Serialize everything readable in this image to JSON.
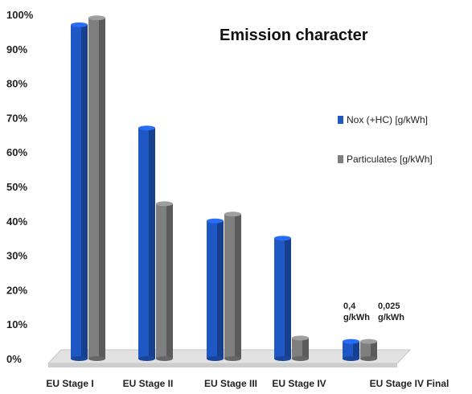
{
  "chart_data": {
    "type": "bar",
    "title": "Emission character",
    "categories": [
      "EU Stage I",
      "EU Stage II",
      "EU Stage III",
      "EU Stage IV",
      "EU Stage IV  Final"
    ],
    "series": [
      {
        "name": "Nox (+HC) [g/kWh]",
        "color": "#1f57c4",
        "values": [
          97,
          67,
          40,
          35,
          5
        ]
      },
      {
        "name": "Particulates [g/kWh]",
        "color": "#7f7f7f",
        "values": [
          99,
          45,
          42,
          6,
          5
        ]
      }
    ],
    "y_ticks": [
      "0%",
      "10%",
      "20%",
      "30%",
      "40%",
      "50%",
      "60%",
      "70%",
      "80%",
      "90%",
      "100%"
    ],
    "ylim": [
      0,
      100
    ],
    "legend_position": "right",
    "grid": false,
    "annotations": [
      {
        "category": "EU Stage IV  Final",
        "series": "Nox (+HC) [g/kWh]",
        "lines": [
          "0,4",
          "g/kWh"
        ]
      },
      {
        "category": "EU Stage IV  Final",
        "series": "Particulates [g/kWh]",
        "lines": [
          "0,025",
          "g/kWh"
        ]
      }
    ]
  }
}
